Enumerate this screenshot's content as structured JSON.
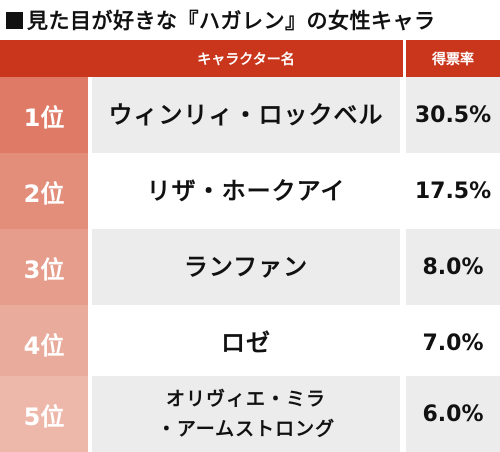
{
  "title": "見た目が好きな『ハガレン』の女性キャラ",
  "header": {
    "character_col": "キャラクター名",
    "votes_col": "得票率"
  },
  "rows": [
    {
      "rank": "1位",
      "name_lines": [
        "ウィンリィ・ロックベル"
      ],
      "pct": "30.5%",
      "color": "#de7a66"
    },
    {
      "rank": "2位",
      "name_lines": [
        "リザ・ホークアイ"
      ],
      "pct": "17.5%",
      "color": "#e28e7b"
    },
    {
      "rank": "3位",
      "name_lines": [
        "ランファン"
      ],
      "pct": "8.0%",
      "color": "#e69d8b"
    },
    {
      "rank": "4位",
      "name_lines": [
        "ロゼ"
      ],
      "pct": "7.0%",
      "color": "#e9ab9b"
    },
    {
      "rank": "5位",
      "name_lines": [
        "オリヴィエ・ミラ",
        "・アームストロング"
      ],
      "pct": "6.0%",
      "color": "#edb8aa"
    }
  ]
}
